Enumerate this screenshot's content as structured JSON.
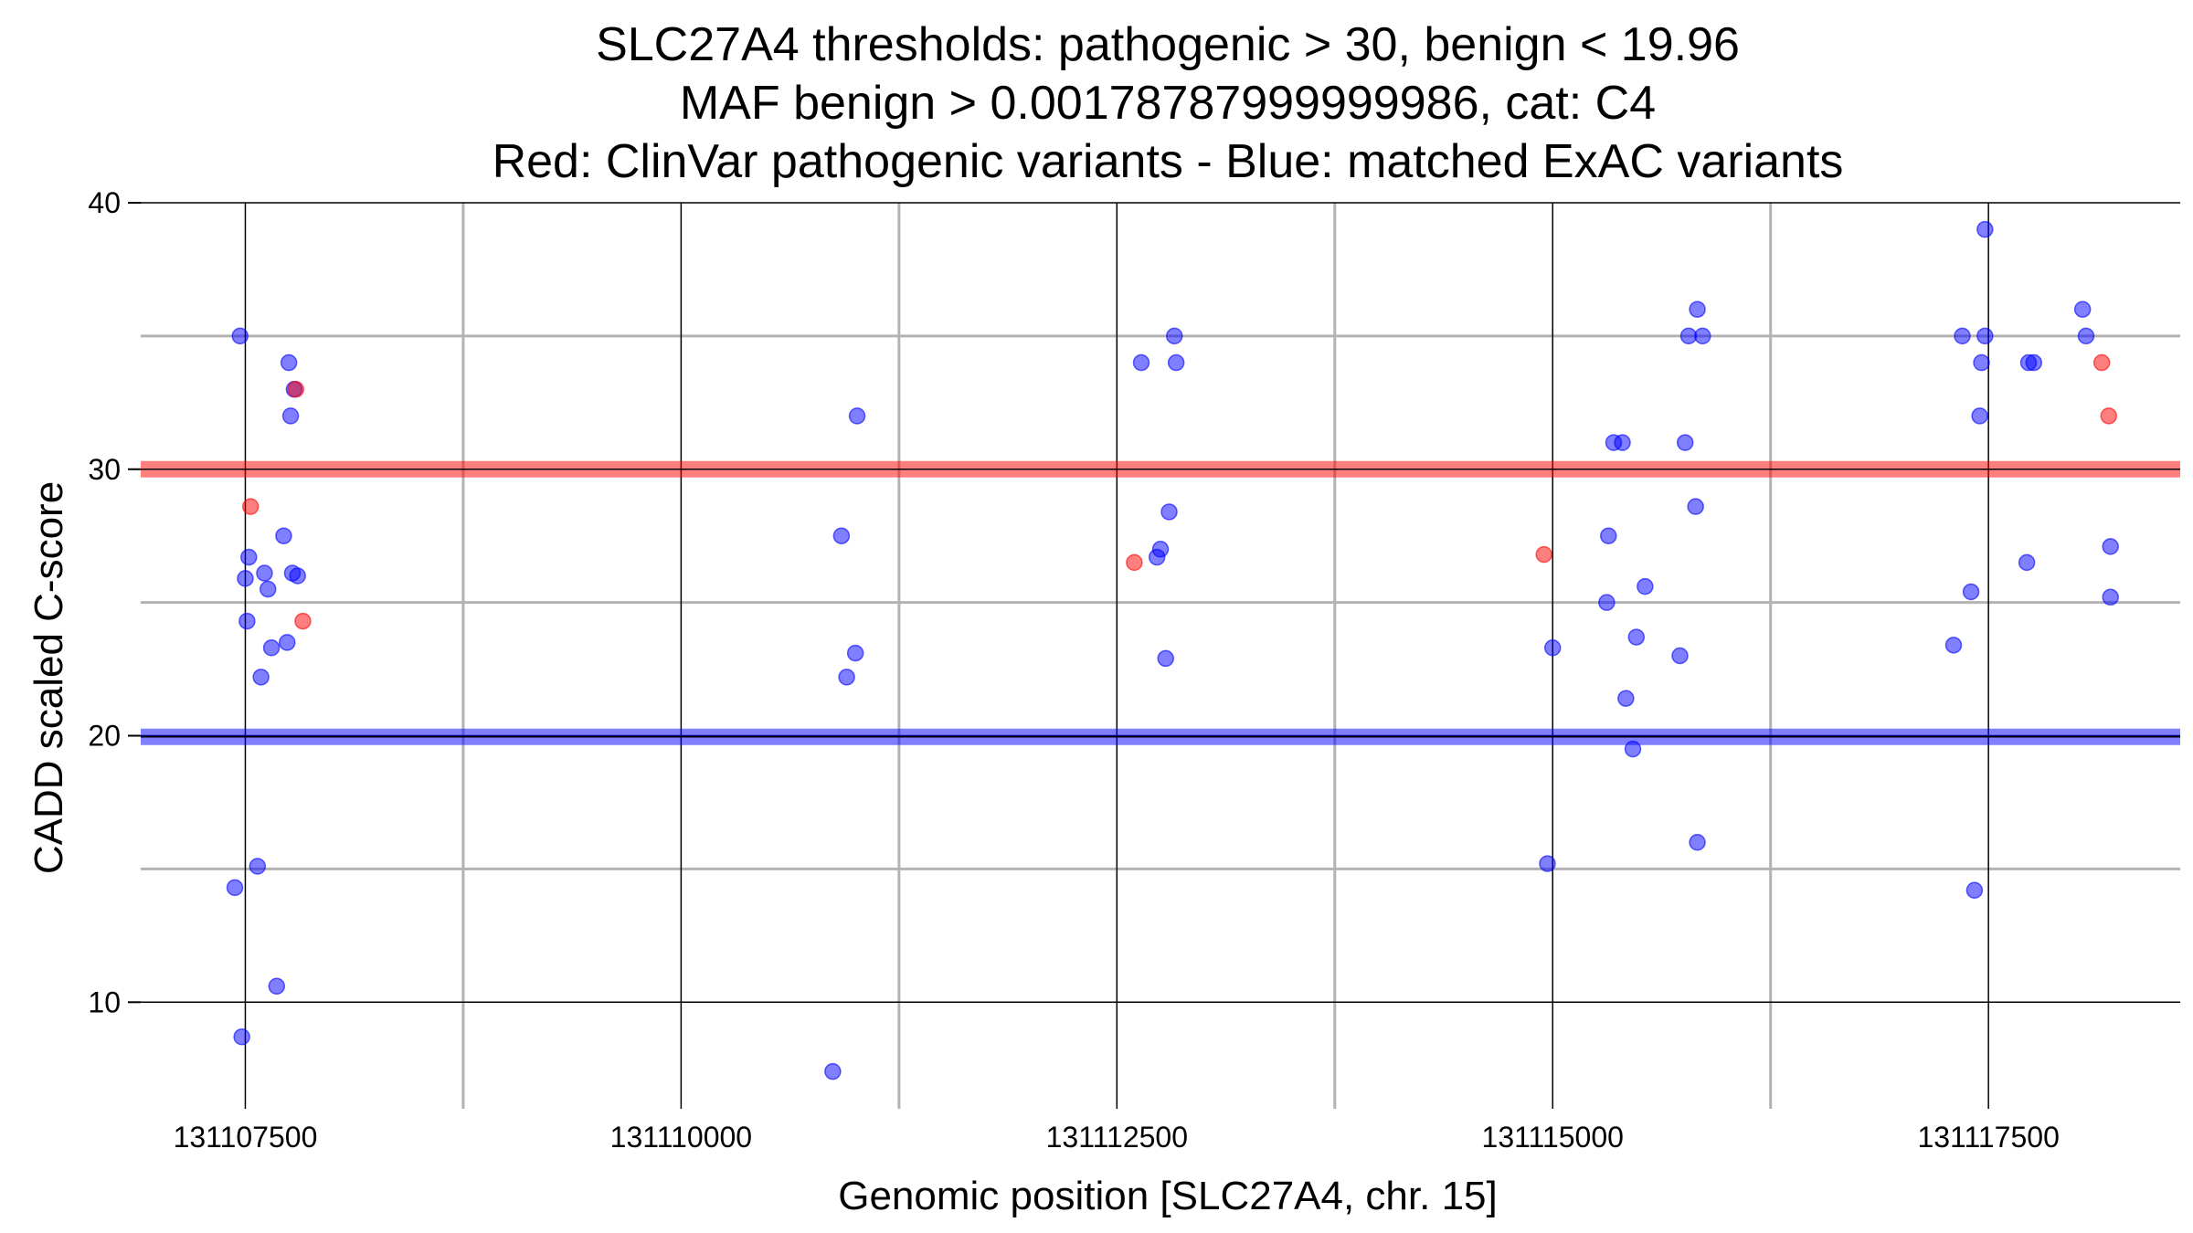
{
  "chart_data": {
    "type": "scatter",
    "title": [
      "SLC27A4 thresholds: pathogenic > 30, benign < 19.96",
      "MAF benign > 0.00178787999999986, cat: C4",
      "Red: ClinVar pathogenic variants - Blue: matched ExAC variants"
    ],
    "xlabel": "Genomic position [SLC27A4, chr. 15]",
    "ylabel": "CADD scaled C-score",
    "xlim": [
      131106900,
      131118600
    ],
    "ylim": [
      6,
      40
    ],
    "x_ticks": [
      131107500,
      131110000,
      131112500,
      131115000,
      131117500
    ],
    "x_tick_labels": [
      "131107500",
      "131110000",
      "131112500",
      "131115000",
      "131117500"
    ],
    "x_minor_gridlines": [
      131108750,
      131111250,
      131113750,
      131116250
    ],
    "y_ticks": [
      10,
      20,
      30,
      40
    ],
    "y_tick_labels": [
      "10",
      "20",
      "30",
      "40"
    ],
    "y_minor_gridlines": [
      15,
      25,
      35
    ],
    "grid": true,
    "thresholds": [
      {
        "name": "pathogenic",
        "y": 30,
        "color": "#ff0000"
      },
      {
        "name": "benign",
        "y": 19.96,
        "color": "#0000ff"
      }
    ],
    "series": [
      {
        "color": "#0000ff",
        "points": [
          [
            131107470,
            35
          ],
          [
            131107440,
            14.3
          ],
          [
            131107480,
            8.7
          ],
          [
            131107500,
            25.9
          ],
          [
            131107520,
            26.7
          ],
          [
            131107510,
            24.3
          ],
          [
            131107570,
            15.1
          ],
          [
            131107590,
            22.2
          ],
          [
            131107610,
            26.1
          ],
          [
            131107630,
            25.5
          ],
          [
            131107650,
            23.3
          ],
          [
            131107680,
            10.6
          ],
          [
            131107720,
            27.5
          ],
          [
            131107750,
            34
          ],
          [
            131107740,
            23.5
          ],
          [
            131107760,
            32
          ],
          [
            131107770,
            26.1
          ],
          [
            131107800,
            26
          ],
          [
            131107780,
            33
          ],
          [
            131110870,
            7.4
          ],
          [
            131110920,
            27.5
          ],
          [
            131110950,
            22.2
          ],
          [
            131111000,
            23.1
          ],
          [
            131111010,
            32
          ],
          [
            131112640,
            34
          ],
          [
            131112730,
            26.7
          ],
          [
            131112750,
            27
          ],
          [
            131112780,
            22.9
          ],
          [
            131112800,
            28.4
          ],
          [
            131112830,
            35
          ],
          [
            131112840,
            34
          ],
          [
            131114970,
            15.2
          ],
          [
            131115000,
            23.3
          ],
          [
            131115310,
            25
          ],
          [
            131115320,
            27.5
          ],
          [
            131115350,
            31
          ],
          [
            131115400,
            31
          ],
          [
            131115420,
            21.4
          ],
          [
            131115460,
            19.5
          ],
          [
            131115480,
            23.7
          ],
          [
            131115530,
            25.6
          ],
          [
            131115730,
            23
          ],
          [
            131115760,
            31
          ],
          [
            131115780,
            35
          ],
          [
            131115820,
            28.6
          ],
          [
            131115830,
            16
          ],
          [
            131115830,
            36
          ],
          [
            131115860,
            35
          ],
          [
            131117300,
            23.4
          ],
          [
            131117350,
            35
          ],
          [
            131117400,
            25.4
          ],
          [
            131117420,
            14.2
          ],
          [
            131117450,
            32
          ],
          [
            131117460,
            34
          ],
          [
            131117480,
            35
          ],
          [
            131117480,
            39
          ],
          [
            131117720,
            26.5
          ],
          [
            131117730,
            34
          ],
          [
            131117760,
            34
          ],
          [
            131118040,
            36
          ],
          [
            131118060,
            35
          ],
          [
            131118200,
            25.2
          ],
          [
            131118200,
            27.1
          ]
        ]
      },
      {
        "color": "#ff0000",
        "points": [
          [
            131107530,
            28.6
          ],
          [
            131107790,
            33
          ],
          [
            131107830,
            24.3
          ],
          [
            131112600,
            26.5
          ],
          [
            131114950,
            26.8
          ],
          [
            131118150,
            34
          ],
          [
            131118190,
            32
          ]
        ]
      }
    ]
  }
}
